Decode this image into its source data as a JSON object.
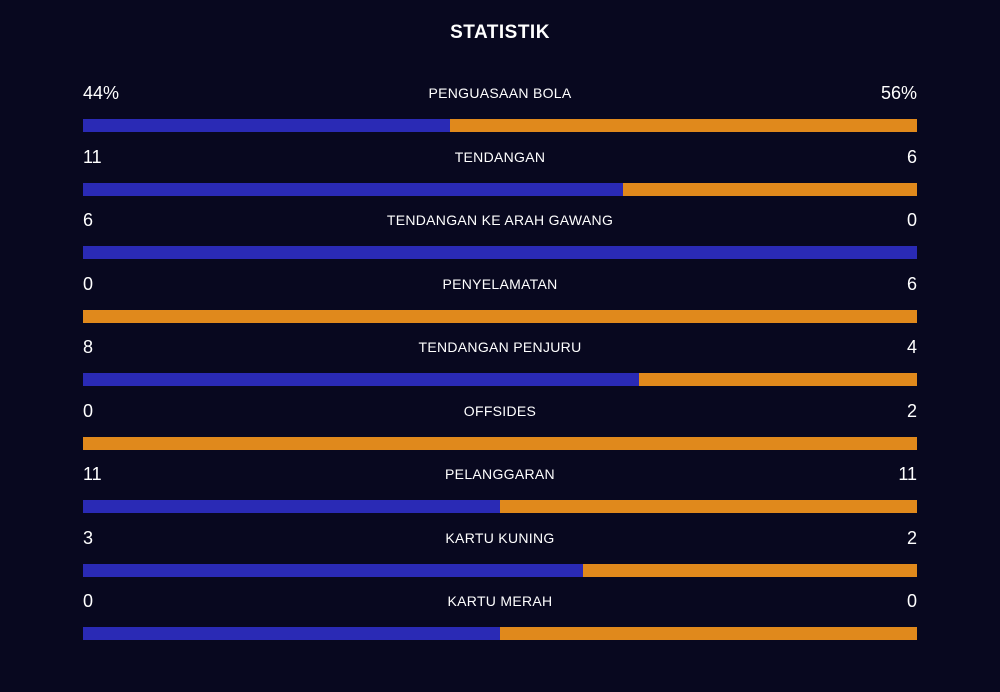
{
  "title": "STATISTIK",
  "stats": [
    {
      "label": "PENGUASAAN BOLA",
      "home": 44,
      "away": 56,
      "home_label": "44%",
      "away_label": "56%"
    },
    {
      "label": "TENDANGAN",
      "home": 11,
      "away": 6
    },
    {
      "label": "TENDANGAN KE ARAH GAWANG",
      "home": 6,
      "away": 0
    },
    {
      "label": "PENYELAMATAN",
      "home": 0,
      "away": 6
    },
    {
      "label": "TENDANGAN PENJURU",
      "home": 8,
      "away": 4
    },
    {
      "label": "OFFSIDES",
      "home": 0,
      "away": 2
    },
    {
      "label": "PELANGGARAN",
      "home": 11,
      "away": 11
    },
    {
      "label": "KARTU KUNING",
      "home": 3,
      "away": 2
    },
    {
      "label": "KARTU MERAH",
      "home": 0,
      "away": 0
    }
  ],
  "home_color": "#2a2ab5",
  "away_color": "#e0891c"
}
